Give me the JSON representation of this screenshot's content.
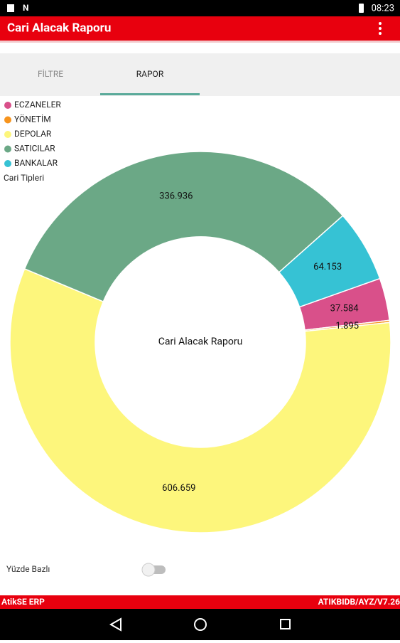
{
  "status_bar": {
    "time": "08:23"
  },
  "app_bar": {
    "title": "Cari Alacak Raporu"
  },
  "tabs": [
    "FİLTRE",
    "RAPOR"
  ],
  "chart_data": {
    "type": "pie",
    "legend_title": "Cari Tipleri",
    "center_text": "Cari Alacak Raporu",
    "categories": [
      "ECZANELER",
      "YÖNETİM",
      "DEPOLAR",
      "SATICILAR",
      "BANKALAR"
    ],
    "values": [
      37584,
      1895,
      606659,
      336936,
      64153
    ],
    "value_labels": [
      "37.584",
      "1.895",
      "606.659",
      "336.936",
      "64.153"
    ],
    "colors": [
      "#d9508a",
      "#f7941d",
      "#fdf67c",
      "#6ba886",
      "#36c2d4"
    ],
    "legend": "top-left"
  },
  "toggle": {
    "label": "Yüzde Bazlı",
    "on": false
  },
  "footer": {
    "left": "AtikSE ERP",
    "right": "ATIKBIDB/AYZ/V7.26"
  }
}
